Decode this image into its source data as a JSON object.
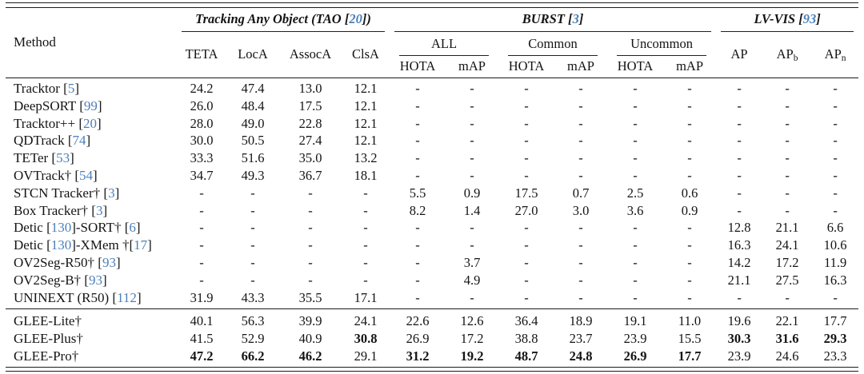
{
  "colors": {
    "citation_blue": "#4c7fba",
    "rule": "#1b1b1b",
    "text": "#141414",
    "background": "#ffffff"
  },
  "table": {
    "method_header": "Method",
    "groups": {
      "tao": {
        "prefix": "Tracking Any Object (TAO [",
        "cite": "20",
        "suffix": "])"
      },
      "burst": {
        "prefix": "BURST [",
        "cite": "3",
        "suffix": "]"
      },
      "lvvis": {
        "prefix": "LV-VIS [",
        "cite": "93",
        "suffix": "]"
      }
    },
    "tao_cols": [
      "TETA",
      "LocA",
      "AssocA",
      "ClsA"
    ],
    "burst_subgroups": [
      "ALL",
      "Common",
      "Uncommon"
    ],
    "burst_cols": [
      "HOTA",
      "mAP"
    ],
    "lvvis_cols": [
      {
        "main": "AP",
        "sub": ""
      },
      {
        "main": "AP",
        "sub": "b"
      },
      {
        "main": "AP",
        "sub": "n"
      }
    ],
    "rows": [
      {
        "parts": [
          "Tracktor [",
          {
            "c": "5"
          },
          "]"
        ],
        "values": [
          "24.2",
          "47.4",
          "13.0",
          "12.1",
          "-",
          "-",
          "-",
          "-",
          "-",
          "-",
          "-",
          "-",
          "-"
        ],
        "bold": []
      },
      {
        "parts": [
          "DeepSORT [",
          {
            "c": "99"
          },
          "]"
        ],
        "values": [
          "26.0",
          "48.4",
          "17.5",
          "12.1",
          "-",
          "-",
          "-",
          "-",
          "-",
          "-",
          "-",
          "-",
          "-"
        ],
        "bold": []
      },
      {
        "parts": [
          "Tracktor++ [",
          {
            "c": "20"
          },
          "]"
        ],
        "values": [
          "28.0",
          "49.0",
          "22.8",
          "12.1",
          "-",
          "-",
          "-",
          "-",
          "-",
          "-",
          "-",
          "-",
          "-"
        ],
        "bold": []
      },
      {
        "parts": [
          "QDTrack [",
          {
            "c": "74"
          },
          "]"
        ],
        "values": [
          "30.0",
          "50.5",
          "27.4",
          "12.1",
          "-",
          "-",
          "-",
          "-",
          "-",
          "-",
          "-",
          "-",
          "-"
        ],
        "bold": []
      },
      {
        "parts": [
          "TETer [",
          {
            "c": "53"
          },
          "]"
        ],
        "values": [
          "33.3",
          "51.6",
          "35.0",
          "13.2",
          "-",
          "-",
          "-",
          "-",
          "-",
          "-",
          "-",
          "-",
          "-"
        ],
        "bold": []
      },
      {
        "parts": [
          "OVTrack† [",
          {
            "c": "54"
          },
          "]"
        ],
        "values": [
          "34.7",
          "49.3",
          "36.7",
          "18.1",
          "-",
          "-",
          "-",
          "-",
          "-",
          "-",
          "-",
          "-",
          "-"
        ],
        "bold": []
      },
      {
        "parts": [
          "STCN Tracker† [",
          {
            "c": "3"
          },
          "]"
        ],
        "values": [
          "-",
          "-",
          "-",
          "-",
          "5.5",
          "0.9",
          "17.5",
          "0.7",
          "2.5",
          "0.6",
          "-",
          "-",
          "-"
        ],
        "bold": []
      },
      {
        "parts": [
          "Box Tracker† [",
          {
            "c": "3"
          },
          "]"
        ],
        "values": [
          "-",
          "-",
          "-",
          "-",
          "8.2",
          "1.4",
          "27.0",
          "3.0",
          "3.6",
          "0.9",
          "-",
          "-",
          "-"
        ],
        "bold": []
      },
      {
        "parts": [
          "Detic [",
          {
            "c": "130"
          },
          "]-SORT† [",
          {
            "c": "6"
          },
          "]"
        ],
        "values": [
          "-",
          "-",
          "-",
          "-",
          "-",
          "-",
          "-",
          "-",
          "-",
          "-",
          "12.8",
          "21.1",
          "6.6"
        ],
        "bold": []
      },
      {
        "parts": [
          "Detic [",
          {
            "c": "130"
          },
          "]-XMem †[",
          {
            "c": "17"
          },
          "]"
        ],
        "values": [
          "-",
          "-",
          "-",
          "-",
          "-",
          "-",
          "-",
          "-",
          "-",
          "-",
          "16.3",
          "24.1",
          "10.6"
        ],
        "bold": []
      },
      {
        "parts": [
          "OV2Seg-R50† [",
          {
            "c": "93"
          },
          "]"
        ],
        "values": [
          "-",
          "-",
          "-",
          "-",
          "-",
          "3.7",
          "-",
          "-",
          "-",
          "-",
          "14.2",
          "17.2",
          "11.9"
        ],
        "bold": []
      },
      {
        "parts": [
          "OV2Seg-B† [",
          {
            "c": "93"
          },
          "]"
        ],
        "values": [
          "-",
          "-",
          "-",
          "-",
          "-",
          "4.9",
          "-",
          "-",
          "-",
          "-",
          "21.1",
          "27.5",
          "16.3"
        ],
        "bold": []
      },
      {
        "parts": [
          "UNINEXT (R50) [",
          {
            "c": "112"
          },
          "]"
        ],
        "values": [
          "31.9",
          "43.3",
          "35.5",
          "17.1",
          "-",
          "-",
          "-",
          "-",
          "-",
          "-",
          "-",
          "-",
          "-"
        ],
        "bold": [],
        "last_of_top": true
      },
      {
        "parts": [
          "GLEE-Lite†"
        ],
        "values": [
          "40.1",
          "56.3",
          "39.9",
          "24.1",
          "22.6",
          "12.6",
          "36.4",
          "18.9",
          "19.1",
          "11.0",
          "19.6",
          "22.1",
          "17.7"
        ],
        "bold": [],
        "rule_above": true
      },
      {
        "parts": [
          "GLEE-Plus†"
        ],
        "values": [
          "41.5",
          "52.9",
          "40.9",
          "30.8",
          "26.9",
          "17.2",
          "38.8",
          "23.7",
          "23.9",
          "15.5",
          "30.3",
          "31.6",
          "29.3"
        ],
        "bold": [
          3,
          10,
          11,
          12
        ]
      },
      {
        "parts": [
          "GLEE-Pro†"
        ],
        "values": [
          "47.2",
          "66.2",
          "46.2",
          "29.1",
          "31.2",
          "19.2",
          "48.7",
          "24.8",
          "26.9",
          "17.7",
          "23.9",
          "24.6",
          "23.3"
        ],
        "bold": [
          0,
          1,
          2,
          4,
          5,
          6,
          7,
          8,
          9
        ]
      }
    ]
  }
}
